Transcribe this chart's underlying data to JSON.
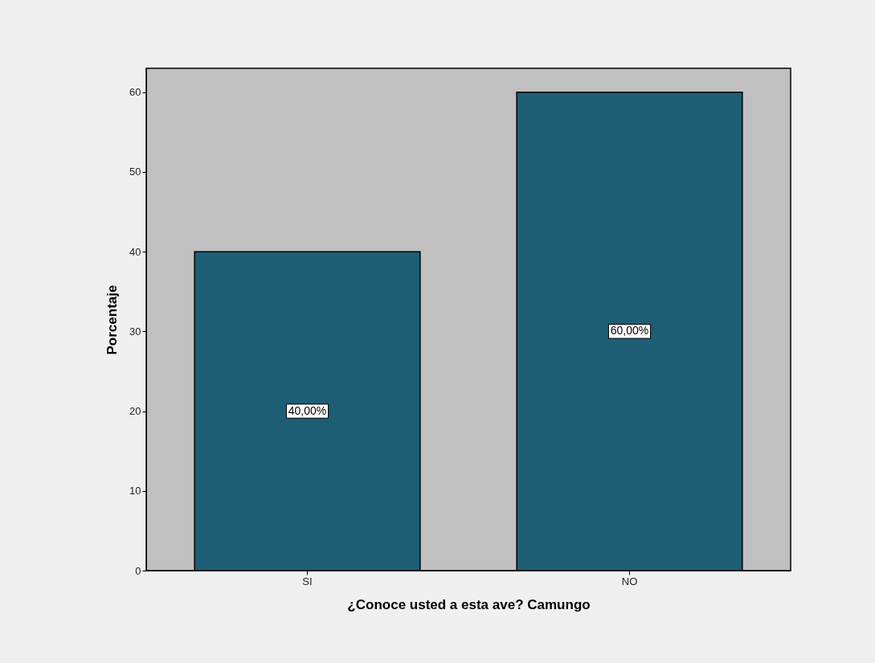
{
  "chart_data": {
    "type": "bar",
    "xlabel": "¿Conoce usted a esta ave? Camungo",
    "ylabel": "Porcentaje",
    "categories": [
      "SI",
      "NO"
    ],
    "values": [
      40,
      60
    ],
    "value_labels": [
      "40,00%",
      "60,00%"
    ],
    "color": "#1d5e75",
    "ylim": [
      0,
      63
    ],
    "yticks": [
      0,
      10,
      20,
      30,
      40,
      50,
      60
    ],
    "grid": false
  }
}
